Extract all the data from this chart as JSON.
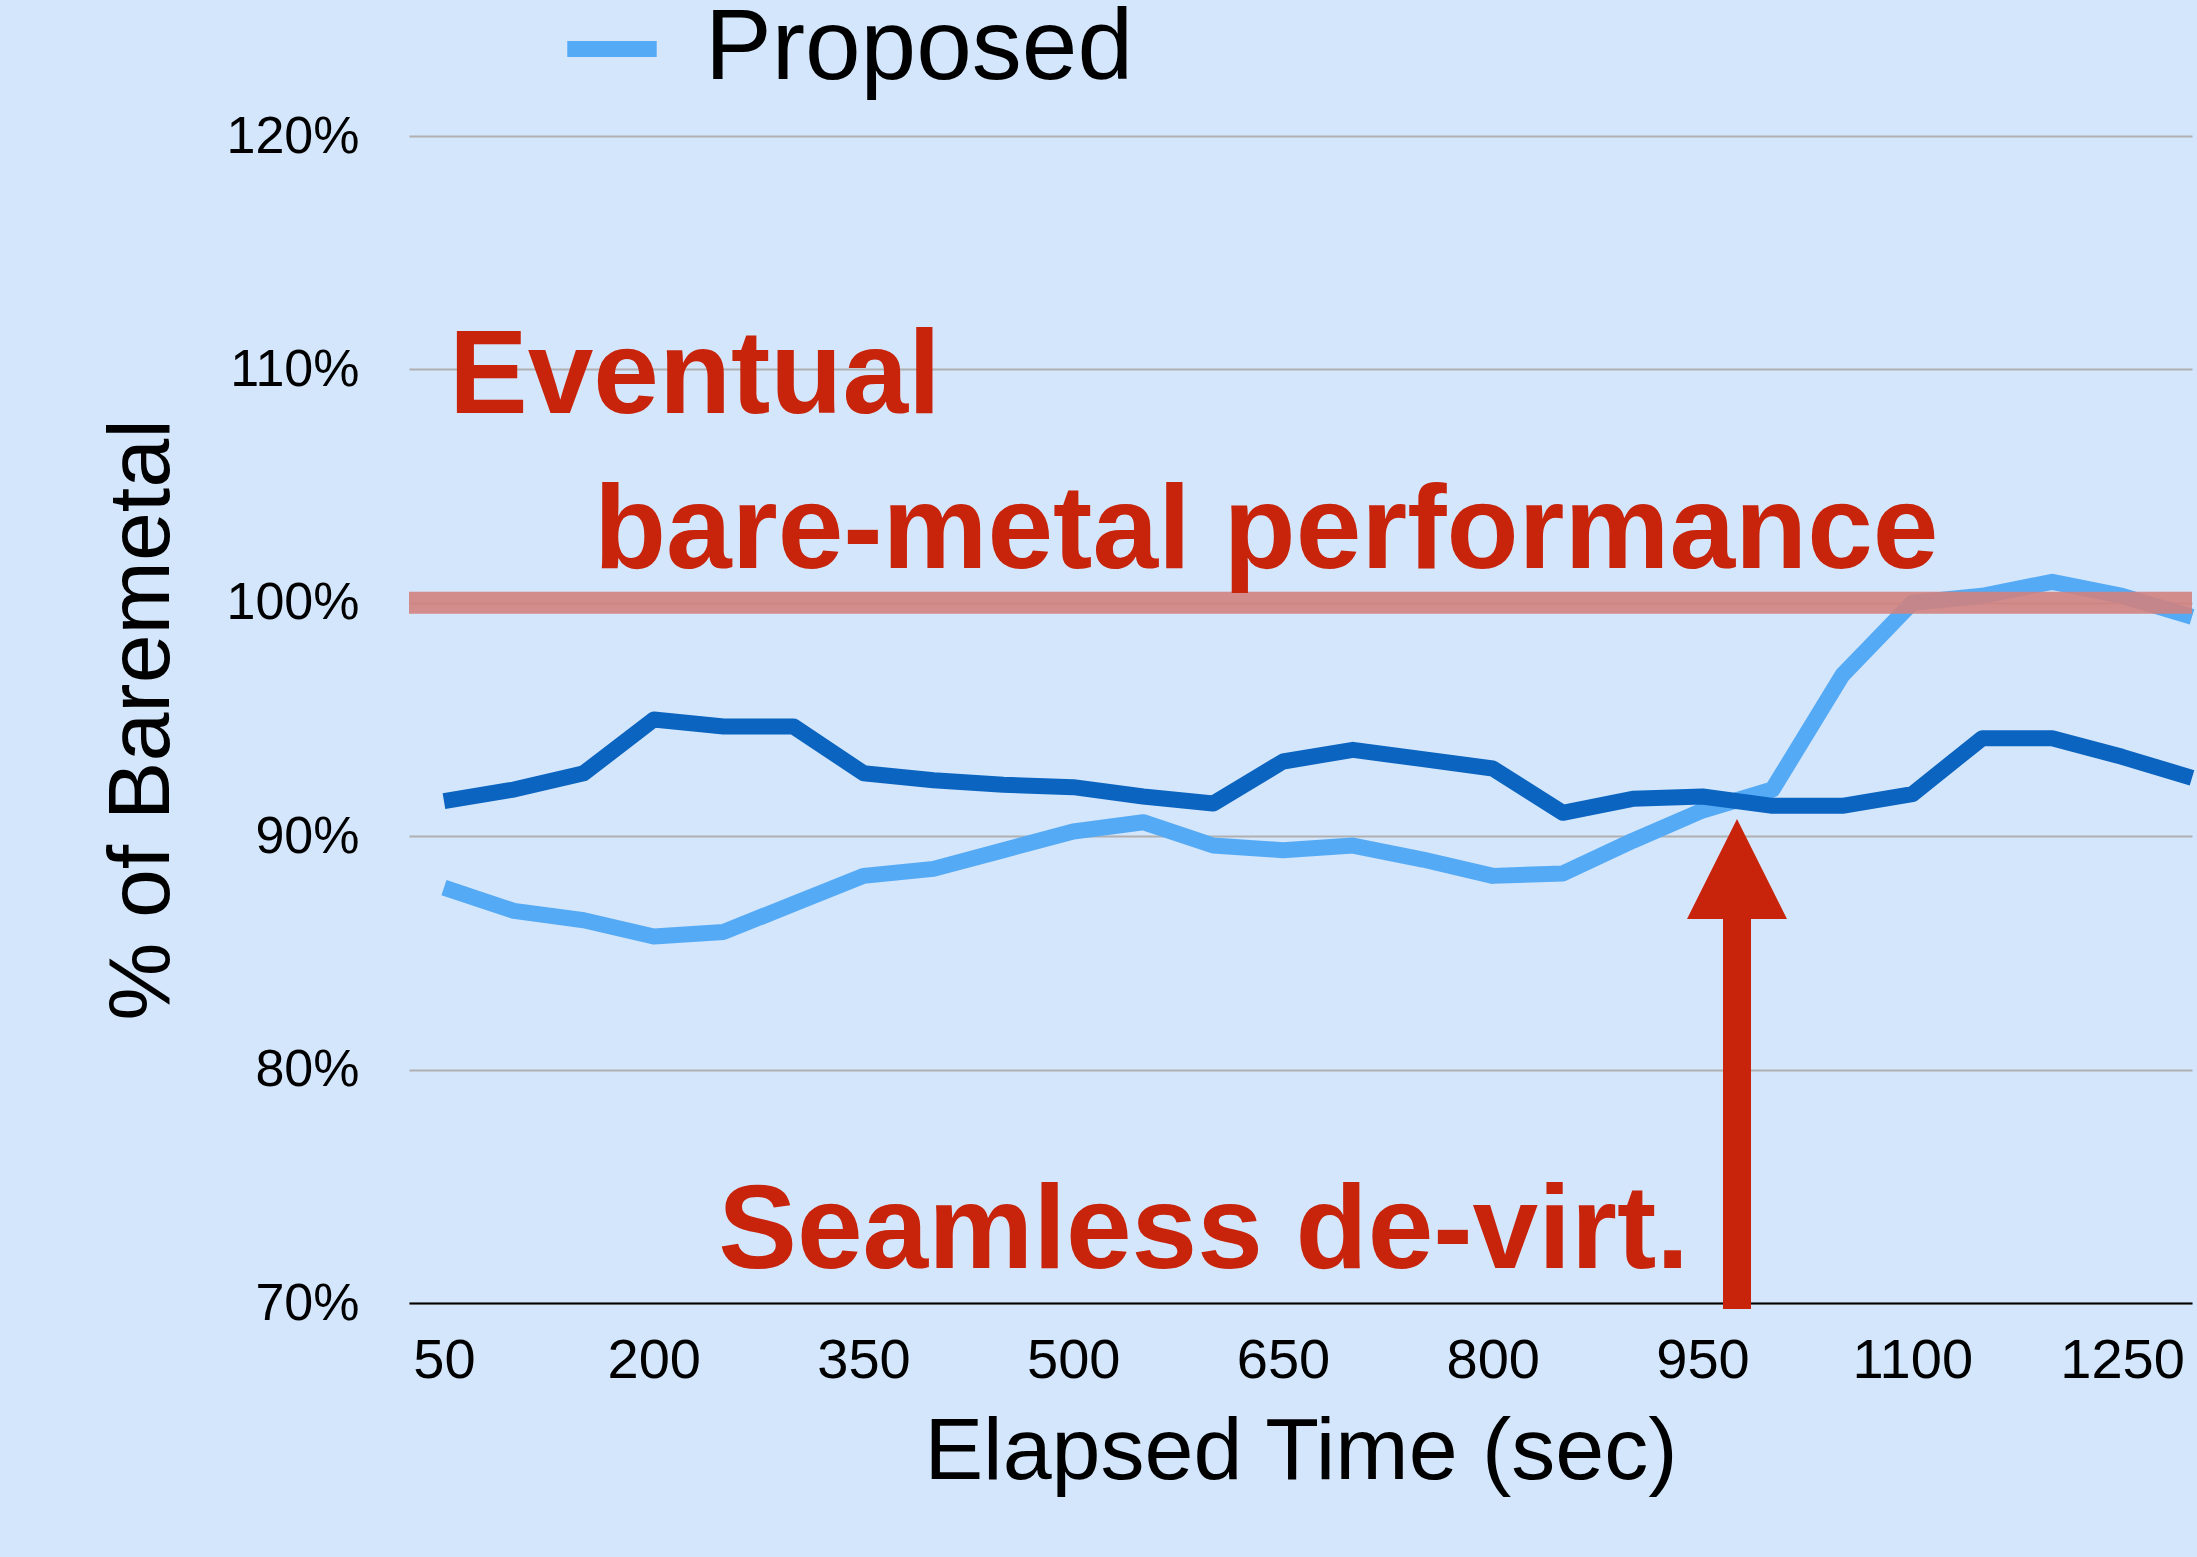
{
  "chart_data": {
    "type": "line",
    "xlabel": "Elapsed Time (sec)",
    "ylabel": "% of Baremetal",
    "x": [
      50,
      100,
      150,
      200,
      250,
      300,
      350,
      400,
      450,
      500,
      550,
      600,
      650,
      700,
      750,
      800,
      850,
      900,
      950,
      1000,
      1050,
      1100,
      1150,
      1200,
      1250,
      1300
    ],
    "series": [
      {
        "name": "Proposed",
        "color": "#55aaf5",
        "values": [
          87.8,
          86.8,
          86.4,
          85.7,
          85.9,
          87.1,
          88.3,
          88.6,
          89.4,
          90.2,
          90.6,
          89.6,
          89.4,
          89.6,
          89.0,
          88.3,
          88.4,
          89.8,
          91.1,
          92.0,
          96.9,
          100.0,
          100.3,
          100.9,
          100.3,
          99.4
        ]
      },
      {
        "color": "#0a64c0",
        "values": [
          91.5,
          92.0,
          92.7,
          95.0,
          94.7,
          94.7,
          92.7,
          92.4,
          92.2,
          92.1,
          91.7,
          91.4,
          93.2,
          93.7,
          93.3,
          92.9,
          91.0,
          91.6,
          91.7,
          91.3,
          91.3,
          91.8,
          94.2,
          94.2,
          93.4,
          92.5
        ]
      }
    ],
    "xlim": [
      25,
      1300
    ],
    "xticks": [
      50,
      200,
      350,
      500,
      650,
      800,
      950,
      1100,
      1250
    ],
    "ylim": [
      70,
      120
    ],
    "yticks": [
      {
        "value": 70,
        "label": "70%"
      },
      {
        "value": 80,
        "label": "80%"
      },
      {
        "value": 90,
        "label": "90%"
      },
      {
        "value": 100,
        "label": "100%"
      },
      {
        "value": 110,
        "label": "110%"
      },
      {
        "value": 120,
        "label": "120%"
      }
    ],
    "ref_lines": [
      {
        "axis": "y",
        "value": 100,
        "label": "Eventual bare-metal performance",
        "color": "#d0827e"
      }
    ],
    "annotations": [
      "Seamless de-virt."
    ],
    "grid": "y",
    "legend": "top",
    "line_style": "solid",
    "marker": "none"
  }
}
